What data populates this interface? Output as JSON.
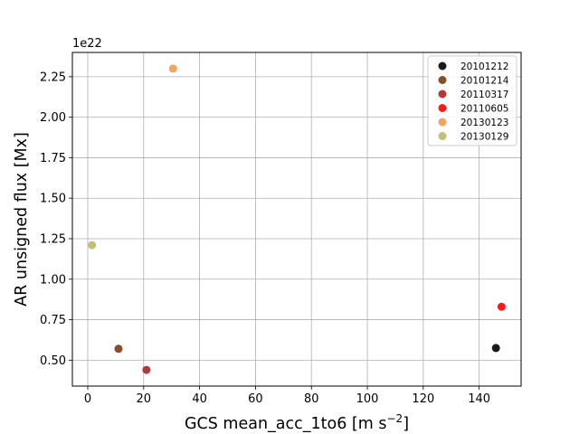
{
  "chart_data": {
    "type": "scatter",
    "xlabel": "GCS mean_acc_1to6 [m s",
    "xlabel_superscript": "−2",
    "xlabel_suffix": "]",
    "ylabel": "AR unsigned flux [Mx]",
    "y_offset_label": "1e22",
    "xlim": [
      -5.5,
      155.0
    ],
    "ylim": [
      0.34,
      2.4
    ],
    "x_ticks": [
      0,
      20,
      40,
      60,
      80,
      100,
      120,
      140
    ],
    "y_ticks": [
      0.5,
      0.75,
      1.0,
      1.25,
      1.5,
      1.75,
      2.0,
      2.25
    ],
    "x_tick_labels": [
      "0",
      "20",
      "40",
      "60",
      "80",
      "100",
      "120",
      "140"
    ],
    "y_tick_labels": [
      "0.50",
      "0.75",
      "1.00",
      "1.25",
      "1.50",
      "1.75",
      "2.00",
      "2.25"
    ],
    "grid": true,
    "legend_position": "top-right",
    "series": [
      {
        "name": "20101212",
        "color": "#1a1a1a",
        "points": [
          [
            146.0,
            0.575
          ]
        ]
      },
      {
        "name": "20101214",
        "color": "#8b4e24",
        "points": [
          [
            11.0,
            0.57
          ]
        ]
      },
      {
        "name": "20110317",
        "color": "#b03a3a",
        "points": [
          [
            21.0,
            0.44
          ]
        ]
      },
      {
        "name": "20110605",
        "color": "#ff1a1a",
        "points": [
          [
            148.0,
            0.83
          ]
        ]
      },
      {
        "name": "20130123",
        "color": "#f5a460",
        "points": [
          [
            30.5,
            2.3
          ]
        ]
      },
      {
        "name": "20130129",
        "color": "#c5bd78",
        "points": [
          [
            1.5,
            1.21
          ]
        ]
      }
    ]
  }
}
